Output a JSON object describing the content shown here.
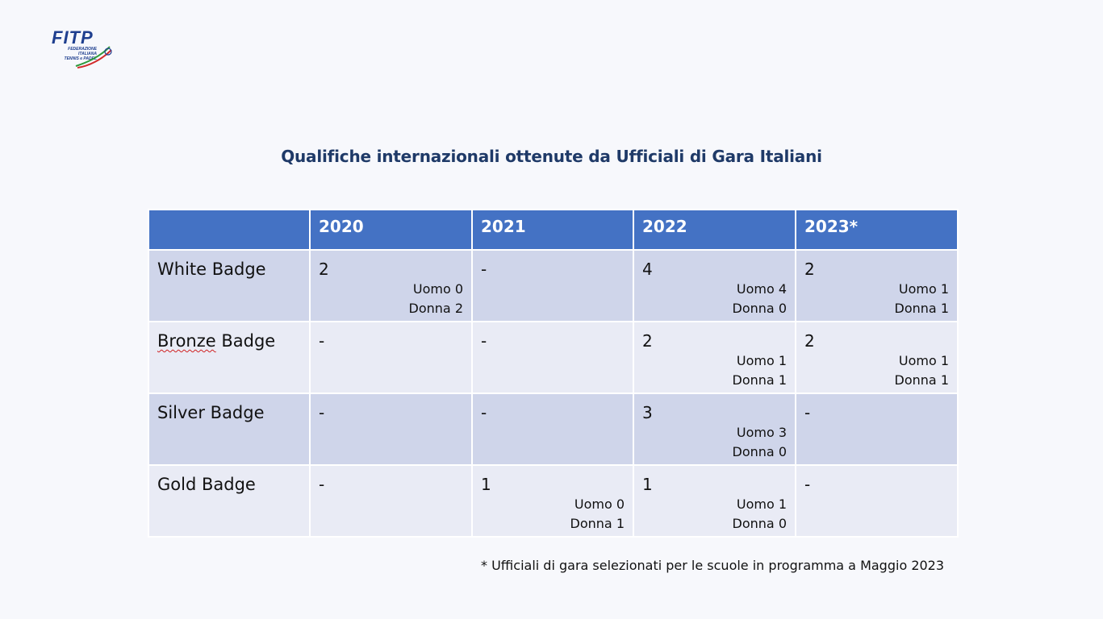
{
  "logo": {
    "text": "FITP",
    "subtext": [
      "FEDERAZIONE",
      "ITALIANA",
      "TENNIS e PADEL"
    ]
  },
  "title": "Qualifiche internazionali ottenute da Ufficiali di Gara Italiani",
  "table": {
    "headers": [
      "",
      "2020",
      "2021",
      "2022",
      "2023*"
    ],
    "rows": [
      {
        "label_parts": [
          "White Badge"
        ],
        "cells": [
          {
            "main": "2",
            "uomo": "Uomo 0",
            "donna": "Donna 2"
          },
          {
            "main": "-",
            "uomo": "",
            "donna": ""
          },
          {
            "main": "4",
            "uomo": "Uomo 4",
            "donna": "Donna 0"
          },
          {
            "main": "2",
            "uomo": "Uomo 1",
            "donna": "Donna 1"
          }
        ]
      },
      {
        "label_parts": [
          "Bronze",
          " Badge"
        ],
        "cells": [
          {
            "main": "-",
            "uomo": "",
            "donna": ""
          },
          {
            "main": "-",
            "uomo": "",
            "donna": ""
          },
          {
            "main": "2",
            "uomo": "Uomo 1",
            "donna": "Donna 1"
          },
          {
            "main": "2",
            "uomo": "Uomo 1",
            "donna": "Donna 1"
          }
        ]
      },
      {
        "label_parts": [
          "Silver Badge"
        ],
        "cells": [
          {
            "main": "-",
            "uomo": "",
            "donna": ""
          },
          {
            "main": "-",
            "uomo": "",
            "donna": ""
          },
          {
            "main": "3",
            "uomo": "Uomo 3",
            "donna": "Donna 0"
          },
          {
            "main": "-",
            "uomo": "",
            "donna": ""
          }
        ]
      },
      {
        "label_parts": [
          "Gold Badge"
        ],
        "cells": [
          {
            "main": "-",
            "uomo": "",
            "donna": ""
          },
          {
            "main": "1",
            "uomo": "Uomo 0",
            "donna": "Donna 1"
          },
          {
            "main": "1",
            "uomo": "Uomo 1",
            "donna": "Donna 0"
          },
          {
            "main": "-",
            "uomo": "",
            "donna": ""
          }
        ]
      }
    ]
  },
  "footnote": "* Ufficiali di gara selezionati per le scuole in programma a Maggio 2023",
  "colors": {
    "header_bg": "#4472c4",
    "row_odd_bg": "#cfd5ea",
    "row_even_bg": "#e9ebf5",
    "title": "#1f3a68",
    "logo": "#1f3f8f"
  }
}
